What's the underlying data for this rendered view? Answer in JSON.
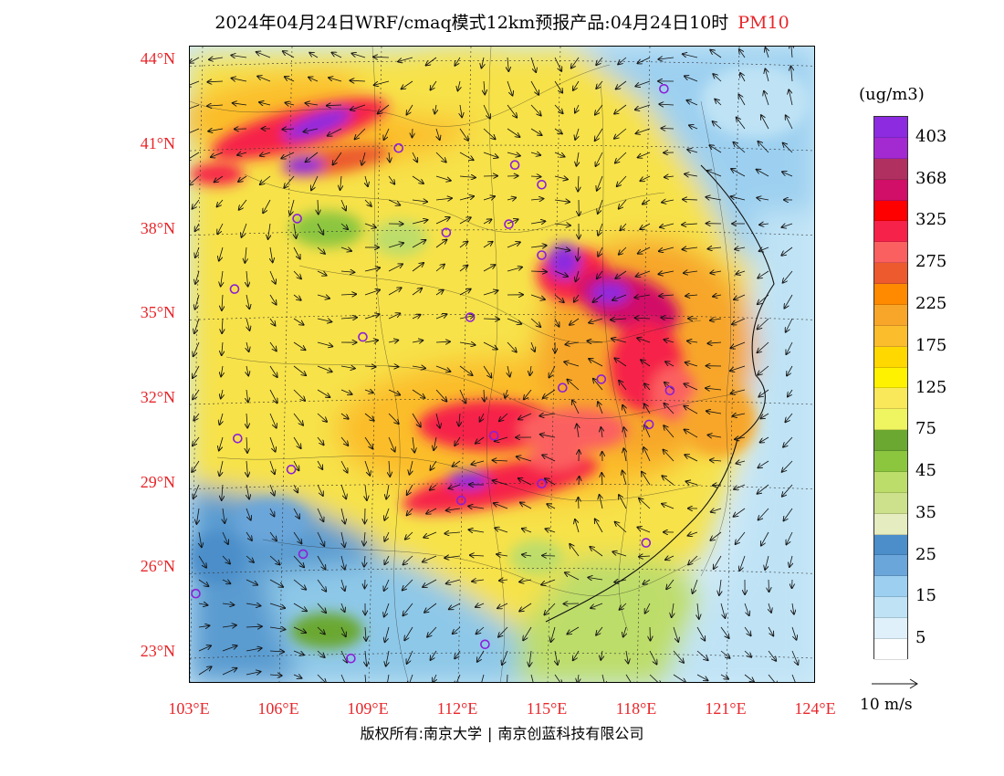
{
  "title": {
    "main": "2024年04月24日WRF/cmaq模式12km预报产品:04月24日10时",
    "pollutant": "PM10"
  },
  "map": {
    "lat_labels": [
      {
        "text": "44°N",
        "lat": 44
      },
      {
        "text": "41°N",
        "lat": 41
      },
      {
        "text": "38°N",
        "lat": 38
      },
      {
        "text": "35°N",
        "lat": 35
      },
      {
        "text": "32°N",
        "lat": 32
      },
      {
        "text": "29°N",
        "lat": 29
      },
      {
        "text": "26°N",
        "lat": 26
      },
      {
        "text": "23°N",
        "lat": 23
      }
    ],
    "lon_labels": [
      {
        "text": "103°E",
        "lon": 103
      },
      {
        "text": "106°E",
        "lon": 106
      },
      {
        "text": "109°E",
        "lon": 109
      },
      {
        "text": "112°E",
        "lon": 112
      },
      {
        "text": "115°E",
        "lon": 115
      },
      {
        "text": "118°E",
        "lon": 118
      },
      {
        "text": "121°E",
        "lon": 121
      },
      {
        "text": "124°E",
        "lon": 124
      }
    ],
    "extent": {
      "lon_min": 103,
      "lon_max": 124,
      "lat_min": 21.9,
      "lat_max": 44.5
    },
    "city_markers": [
      {
        "lon": 118.9,
        "lat": 43.0
      },
      {
        "lon": 110.0,
        "lat": 40.9
      },
      {
        "lon": 113.9,
        "lat": 40.3
      },
      {
        "lon": 114.8,
        "lat": 39.6
      },
      {
        "lon": 106.6,
        "lat": 38.4
      },
      {
        "lon": 111.6,
        "lat": 37.9
      },
      {
        "lon": 113.7,
        "lat": 38.2
      },
      {
        "lon": 114.8,
        "lat": 37.1
      },
      {
        "lon": 104.5,
        "lat": 35.9
      },
      {
        "lon": 112.4,
        "lat": 34.9
      },
      {
        "lon": 108.8,
        "lat": 34.2
      },
      {
        "lon": 116.8,
        "lat": 32.7
      },
      {
        "lon": 115.5,
        "lat": 32.4
      },
      {
        "lon": 119.1,
        "lat": 32.3
      },
      {
        "lon": 118.4,
        "lat": 31.1
      },
      {
        "lon": 104.6,
        "lat": 30.6
      },
      {
        "lon": 113.2,
        "lat": 30.7
      },
      {
        "lon": 106.4,
        "lat": 29.5
      },
      {
        "lon": 114.8,
        "lat": 29.0
      },
      {
        "lon": 112.1,
        "lat": 28.4
      },
      {
        "lon": 106.8,
        "lat": 26.5
      },
      {
        "lon": 118.3,
        "lat": 26.9
      },
      {
        "lon": 103.2,
        "lat": 25.1
      },
      {
        "lon": 112.9,
        "lat": 23.3
      },
      {
        "lon": 108.4,
        "lat": 22.8
      }
    ]
  },
  "colorbar": {
    "unit": "(ug/m3)",
    "colors": [
      "#8c2be0",
      "#a32ad0",
      "#b03060",
      "#d10f68",
      "#ff0000",
      "#f6224a",
      "#fb6060",
      "#ec5a2e",
      "#ff8a00",
      "#f7a62a",
      "#fbbd2c",
      "#ffd800",
      "#fff200",
      "#f8e85a",
      "#eef560",
      "#6aa832",
      "#8cc63f",
      "#bddd6a",
      "#cde08c",
      "#e4ecc0",
      "#4b8ec9",
      "#6aa6da",
      "#9dd0f0",
      "#bfe3f5",
      "#dff0fa",
      "#ffffff"
    ],
    "labels": [
      "403",
      "368",
      "325",
      "275",
      "225",
      "175",
      "125",
      "75",
      "45",
      "35",
      "25",
      "15",
      "5"
    ]
  },
  "wind": {
    "reference_label": "10 m/s"
  },
  "copyright": {
    "left": "版权所有:南京大学",
    "right": "南京创蓝科技有限公司"
  }
}
